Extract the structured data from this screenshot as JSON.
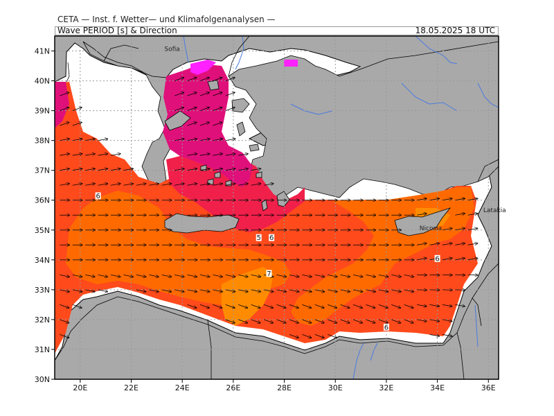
{
  "header": {
    "title": "CETA — Inst. f. Wetter— und Klimafolgenanalysen —",
    "parameter": "Wave PERIOD [s] & Direction",
    "datetime": "18.05.2025  18 UTC"
  },
  "map": {
    "lon_range": [
      19,
      36.4
    ],
    "lat_range": [
      30,
      41.5
    ],
    "grid": true,
    "colors": {
      "land": "#a9a9a9",
      "sea_mask": "#ffffff",
      "period_5": "#ff8c00",
      "period_6": "#ff6a00",
      "period_7": "#ff4a1c",
      "period_8": "#f0204a",
      "period_9": "#e0107a",
      "period_10": "#ff20ff",
      "rivers": "#4a7ae0",
      "coast": "#000000"
    },
    "x_ticks": [
      "20E",
      "22E",
      "24E",
      "26E",
      "28E",
      "30E",
      "32E",
      "34E",
      "36E"
    ],
    "y_ticks": [
      "41N",
      "40N",
      "39N",
      "38N",
      "37N",
      "36N",
      "35N",
      "34N",
      "33N",
      "32N",
      "31N",
      "30N"
    ],
    "contour_labels": [
      {
        "text": "6",
        "lon": 20.7,
        "lat": 36.1
      },
      {
        "text": "5",
        "lon": 27.0,
        "lat": 34.7
      },
      {
        "text": "6",
        "lon": 27.5,
        "lat": 34.7
      },
      {
        "text": "7",
        "lon": 27.4,
        "lat": 33.5
      },
      {
        "text": "6",
        "lon": 34.0,
        "lat": 34.0
      },
      {
        "text": "6",
        "lon": 32.0,
        "lat": 31.7
      }
    ],
    "place_labels": [
      {
        "text": "Sofia",
        "lon": 23.3,
        "lat": 41.0
      },
      {
        "text": "Nicosia",
        "lon": 33.3,
        "lat": 35.0
      },
      {
        "text": "Latakia",
        "lon": 35.8,
        "lat": 35.6
      }
    ]
  }
}
